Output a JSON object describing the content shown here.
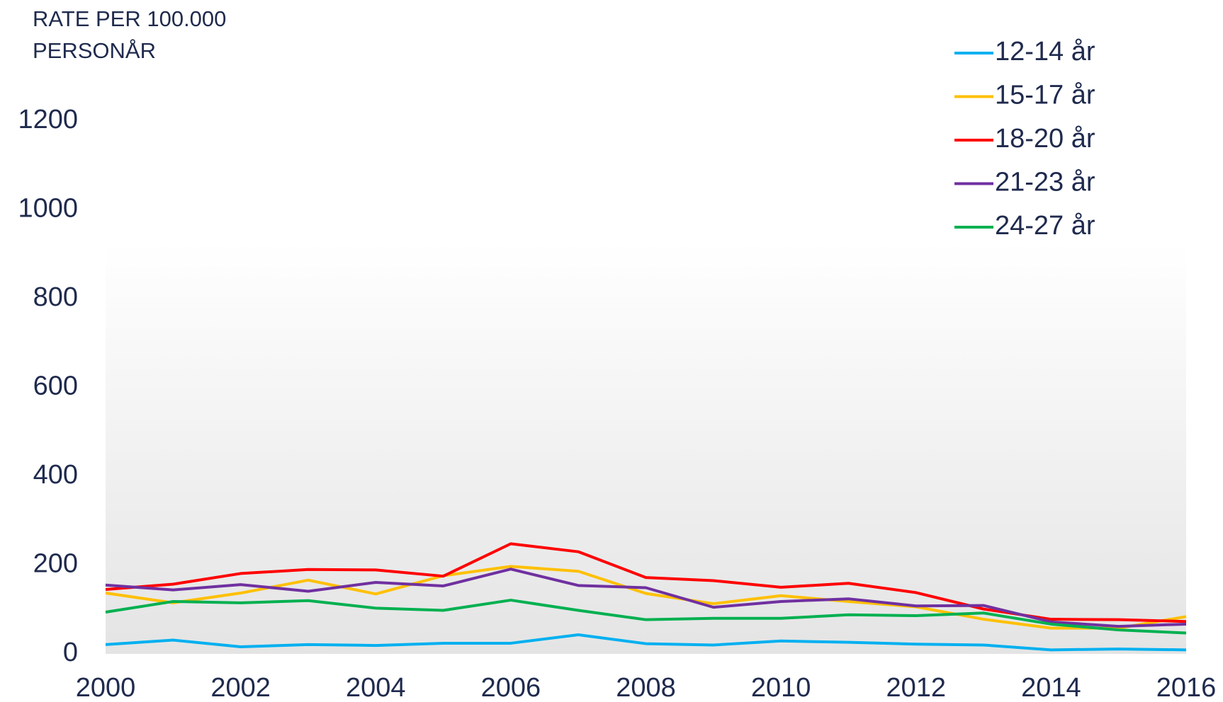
{
  "chart_data": {
    "type": "line",
    "ylabel": [
      "RATE PER 100.000",
      "PERSONÅR"
    ],
    "x": [
      2000,
      2001,
      2002,
      2003,
      2004,
      2005,
      2006,
      2007,
      2008,
      2009,
      2010,
      2011,
      2012,
      2013,
      2014,
      2015,
      2016
    ],
    "series": [
      {
        "name": "12-14 år",
        "color": "#00b0f0",
        "values": [
          21,
          31,
          16,
          21,
          19,
          24,
          24,
          43,
          23,
          20,
          29,
          26,
          22,
          20,
          9,
          11,
          9
        ]
      },
      {
        "name": "15-17 år",
        "color": "#ffc000",
        "values": [
          137,
          115,
          137,
          166,
          135,
          176,
          197,
          186,
          136,
          113,
          131,
          118,
          106,
          78,
          58,
          58,
          84
        ]
      },
      {
        "name": "18-20 år",
        "color": "#ff0000",
        "values": [
          145,
          157,
          181,
          190,
          189,
          175,
          248,
          230,
          172,
          165,
          150,
          159,
          138,
          101,
          78,
          77,
          73
        ]
      },
      {
        "name": "21-23 år",
        "color": "#7030a0",
        "values": [
          155,
          144,
          156,
          141,
          161,
          153,
          191,
          154,
          149,
          105,
          118,
          124,
          108,
          109,
          72,
          62,
          67
        ]
      },
      {
        "name": "24-27 år",
        "color": "#00b050",
        "values": [
          94,
          118,
          115,
          120,
          103,
          98,
          121,
          98,
          77,
          80,
          80,
          88,
          86,
          92,
          67,
          54,
          47
        ]
      }
    ],
    "xlim": [
      2000,
      2016
    ],
    "xticks": [
      2000,
      2002,
      2004,
      2006,
      2008,
      2010,
      2012,
      2014,
      2016
    ],
    "ylim": [
      0,
      1200
    ],
    "yticks": [
      0,
      200,
      400,
      600,
      800,
      1000,
      1200
    ],
    "grid": false,
    "legend": "upper right"
  }
}
